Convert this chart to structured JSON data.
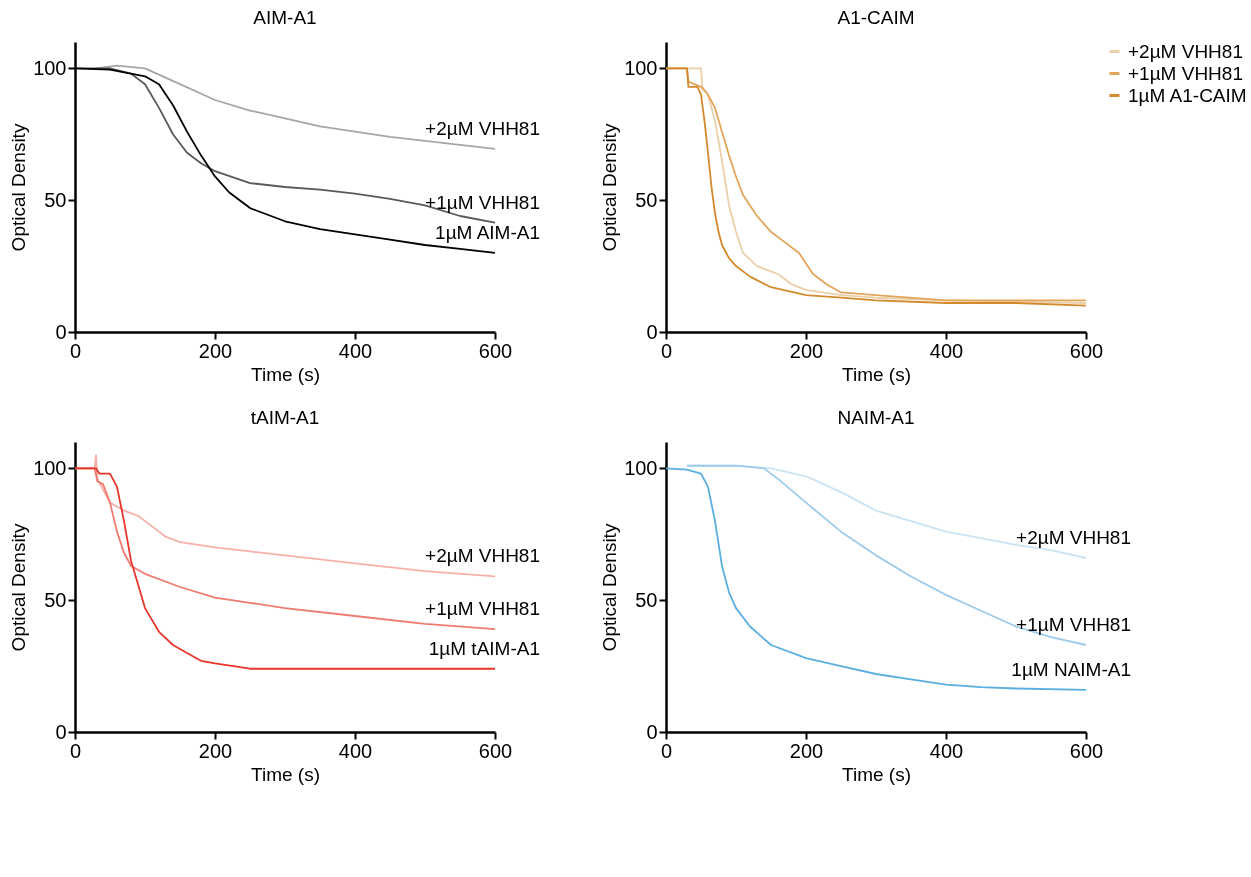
{
  "chart_data": [
    {
      "type": "line",
      "title": "AIM-A1",
      "xlabel": "Time (s)",
      "ylabel": "Optical Density",
      "xlim": [
        0,
        600
      ],
      "ylim": [
        0,
        110
      ],
      "xticks": [
        0,
        200,
        400,
        600
      ],
      "yticks": [
        0,
        50,
        100
      ],
      "series": [
        {
          "name": "+2µM VHH81",
          "color": "#a6a6a6",
          "x": [
            30,
            60,
            100,
            150,
            200,
            250,
            300,
            350,
            400,
            450,
            500,
            550,
            600
          ],
          "values": [
            100,
            101,
            100,
            94,
            88,
            84,
            81,
            78,
            76,
            74,
            72.5,
            71,
            69.5
          ]
        },
        {
          "name": "+1µM VHH81",
          "color": "#595959",
          "x": [
            0,
            50,
            80,
            100,
            120,
            140,
            160,
            180,
            200,
            250,
            300,
            350,
            400,
            450,
            500,
            550,
            600
          ],
          "values": [
            100,
            100,
            98,
            94,
            85,
            75,
            68,
            64,
            61,
            56.5,
            55,
            54,
            52.5,
            50.5,
            48,
            44,
            41.5
          ]
        },
        {
          "name": "1µM AIM-A1",
          "color": "#000000",
          "x": [
            0,
            50,
            100,
            120,
            140,
            160,
            180,
            200,
            220,
            250,
            300,
            350,
            400,
            450,
            500,
            550,
            600
          ],
          "values": [
            100,
            99.5,
            97,
            94,
            86,
            76,
            67,
            59,
            53,
            47,
            42,
            39,
            37,
            35,
            33,
            31.5,
            30
          ]
        }
      ]
    },
    {
      "type": "line",
      "title": "A1-CAIM",
      "xlabel": "Time (s)",
      "ylabel": "Optical Density",
      "xlim": [
        0,
        600
      ],
      "ylim": [
        0,
        110
      ],
      "xticks": [
        0,
        200,
        400,
        600
      ],
      "yticks": [
        0,
        50,
        100
      ],
      "legend": "right",
      "series": [
        {
          "name": "+2µM VHH81",
          "color": "#ebcfa8",
          "x": [
            0,
            50,
            52,
            60,
            70,
            80,
            90,
            100,
            110,
            130,
            160,
            180,
            200,
            250,
            300,
            400,
            600
          ],
          "values": [
            100,
            100,
            93,
            90,
            80,
            65,
            48,
            38,
            30,
            25,
            22,
            18,
            16,
            14,
            13,
            12,
            11
          ]
        },
        {
          "name": "+1µM VHH81",
          "color": "#e3a55a",
          "x": [
            0,
            30,
            32,
            50,
            60,
            70,
            80,
            90,
            100,
            110,
            130,
            150,
            170,
            190,
            210,
            230,
            250,
            300,
            400,
            500,
            600
          ],
          "values": [
            100,
            100,
            95,
            93,
            90,
            85,
            76,
            67,
            59,
            52,
            44,
            38,
            34,
            30,
            22,
            18,
            15,
            14,
            12,
            12,
            12
          ]
        },
        {
          "name": "1µM A1-CAIM",
          "color": "#d4892a",
          "x": [
            0,
            30,
            32,
            45,
            50,
            55,
            60,
            65,
            70,
            75,
            80,
            90,
            100,
            120,
            150,
            200,
            250,
            300,
            400,
            500,
            600
          ],
          "values": [
            100,
            100,
            93,
            93,
            90,
            80,
            68,
            55,
            45,
            38,
            33,
            28,
            25,
            21,
            17,
            14,
            13,
            12,
            11,
            11,
            10
          ]
        }
      ]
    },
    {
      "type": "line",
      "title": "tAIM-A1",
      "xlabel": "Time (s)",
      "ylabel": "Optical Density",
      "xlim": [
        0,
        600
      ],
      "ylim": [
        0,
        110
      ],
      "xticks": [
        0,
        200,
        400,
        600
      ],
      "yticks": [
        0,
        50,
        100
      ],
      "series": [
        {
          "name": "+2µM VHH81",
          "color": "#f6b0a8",
          "x": [
            0,
            28,
            30,
            32,
            40,
            50,
            70,
            90,
            110,
            130,
            150,
            200,
            250,
            300,
            400,
            500,
            600
          ],
          "values": [
            100,
            100,
            105,
            96,
            92,
            87,
            84,
            82,
            78,
            74,
            72,
            70,
            68.5,
            67,
            64,
            61,
            59
          ]
        },
        {
          "name": "+1µM VHH81",
          "color": "#ef7b70",
          "x": [
            0,
            28,
            32,
            40,
            50,
            60,
            70,
            80,
            100,
            150,
            200,
            250,
            300,
            400,
            500,
            600
          ],
          "values": [
            100,
            100,
            95,
            94,
            87,
            76,
            68,
            63,
            60,
            55,
            51,
            49,
            47,
            44,
            41,
            39
          ]
        },
        {
          "name": "1µM tAIM-A1",
          "color": "#e8352a",
          "x": [
            0,
            30,
            35,
            50,
            60,
            70,
            80,
            90,
            100,
            120,
            140,
            160,
            180,
            200,
            250,
            300,
            400,
            500,
            600
          ],
          "values": [
            100,
            100,
            98,
            98,
            93,
            80,
            65,
            56,
            47,
            38,
            33,
            30,
            27,
            26,
            24,
            24,
            24,
            24,
            24
          ]
        }
      ]
    },
    {
      "type": "line",
      "title": "NAIM-A1",
      "xlabel": "Time (s)",
      "ylabel": "Optical Density",
      "xlim": [
        0,
        600
      ],
      "ylim": [
        0,
        110
      ],
      "xticks": [
        0,
        200,
        400,
        600
      ],
      "yticks": [
        0,
        50,
        100
      ],
      "series": [
        {
          "name": "+2µM VHH81",
          "color": "#c9e3f5",
          "x": [
            30,
            100,
            150,
            200,
            250,
            300,
            350,
            400,
            450,
            500,
            550,
            600
          ],
          "values": [
            101,
            101,
            100,
            97,
            91,
            84,
            80,
            76,
            73.5,
            71,
            69,
            66
          ]
        },
        {
          "name": "+1µM VHH81",
          "color": "#9ccbeb",
          "x": [
            30,
            100,
            140,
            160,
            200,
            250,
            300,
            350,
            400,
            450,
            500,
            550,
            600
          ],
          "values": [
            101,
            101,
            100,
            96,
            87,
            76,
            67,
            59,
            52,
            46,
            40,
            36,
            33
          ]
        },
        {
          "name": "1µM NAIM-A1",
          "color": "#5aaee0",
          "x": [
            0,
            30,
            50,
            60,
            70,
            80,
            90,
            100,
            120,
            150,
            200,
            250,
            300,
            350,
            400,
            450,
            500,
            600
          ],
          "values": [
            100,
            99.5,
            98,
            93,
            80,
            63,
            53,
            47,
            40,
            33,
            28,
            25,
            22,
            20,
            18,
            17,
            16.5,
            16
          ]
        }
      ]
    }
  ]
}
